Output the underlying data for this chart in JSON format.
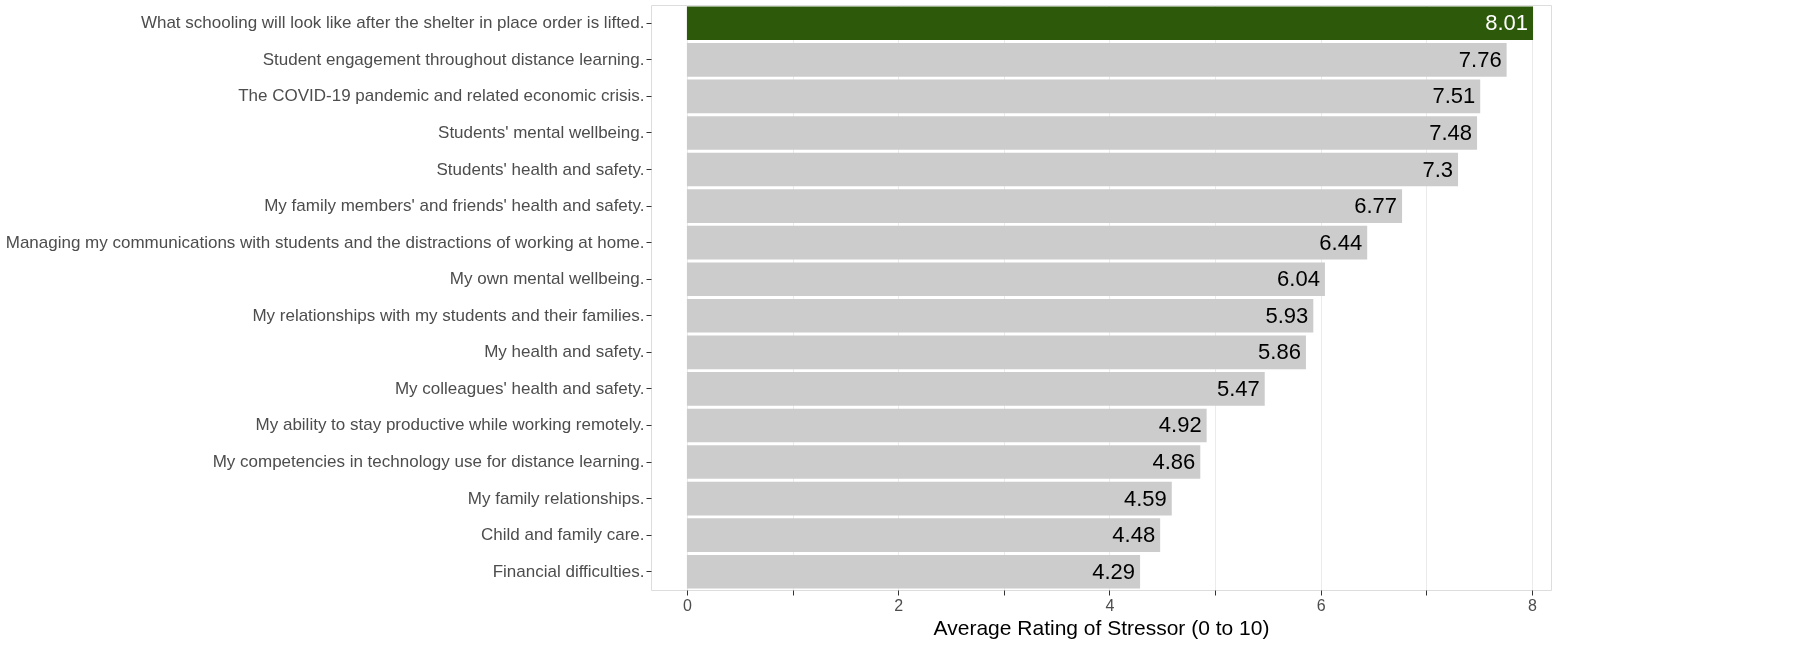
{
  "chart_data": {
    "type": "bar",
    "orientation": "horizontal",
    "xlabel": "Average Rating of Stressor (0 to 10)",
    "categories": [
      "What schooling will look like after the shelter in place order is lifted.",
      "Student engagement throughout distance learning.",
      "The COVID-19 pandemic and related economic crisis.",
      "Students' mental wellbeing.",
      "Students' health and safety.",
      "My family members' and friends' health and safety.",
      "Managing my communications with students and the distractions of working at home.",
      "My own mental wellbeing.",
      "My relationships with my students and their families.",
      "My health and safety.",
      "My colleagues' health and safety.",
      "My ability to stay productive while working remotely.",
      "My competencies in technology use for distance learning.",
      "My family relationships.",
      "Child and family care.",
      "Financial difficulties."
    ],
    "values": [
      8.01,
      7.76,
      7.51,
      7.48,
      7.3,
      6.77,
      6.44,
      6.04,
      5.93,
      5.86,
      5.47,
      4.92,
      4.86,
      4.59,
      4.48,
      4.29
    ],
    "colors": [
      "#2d5a0a",
      "#cccccc",
      "#cccccc",
      "#cccccc",
      "#cccccc",
      "#cccccc",
      "#cccccc",
      "#cccccc",
      "#cccccc",
      "#cccccc",
      "#cccccc",
      "#cccccc",
      "#cccccc",
      "#cccccc",
      "#cccccc",
      "#cccccc"
    ],
    "xlim": [
      -0.34,
      8.18
    ],
    "xticks": [
      0,
      {
        "value": 1,
        "label": null
      },
      2,
      {
        "value": 3,
        "label": null
      },
      4,
      {
        "value": 5,
        "label": null
      },
      6,
      {
        "value": 7,
        "label": null
      },
      8
    ],
    "grid": true,
    "data_labels": true,
    "legend": false
  }
}
